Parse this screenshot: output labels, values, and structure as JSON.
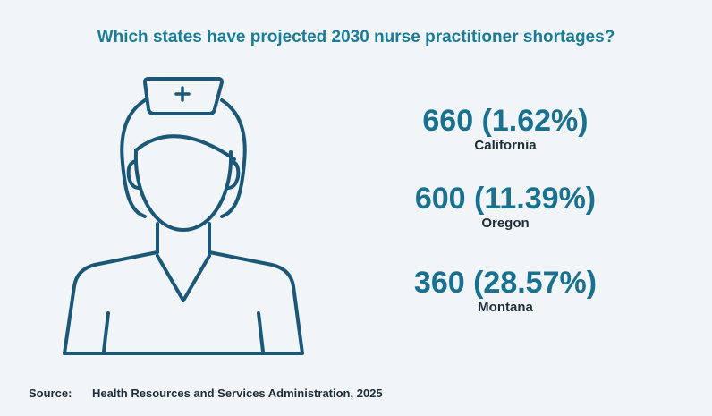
{
  "header": {
    "title": "Which states have projected 2030 nurse practitioner shortages?"
  },
  "stats": [
    {
      "value": "660 (1.62%)",
      "state": "California"
    },
    {
      "value": "600 (11.39%)",
      "state": "Oregon"
    },
    {
      "value": "360 (28.57%)",
      "state": "Montana"
    }
  ],
  "footer": {
    "label": "Source:",
    "text": "Health Resources and Services Administration, 2025"
  }
}
